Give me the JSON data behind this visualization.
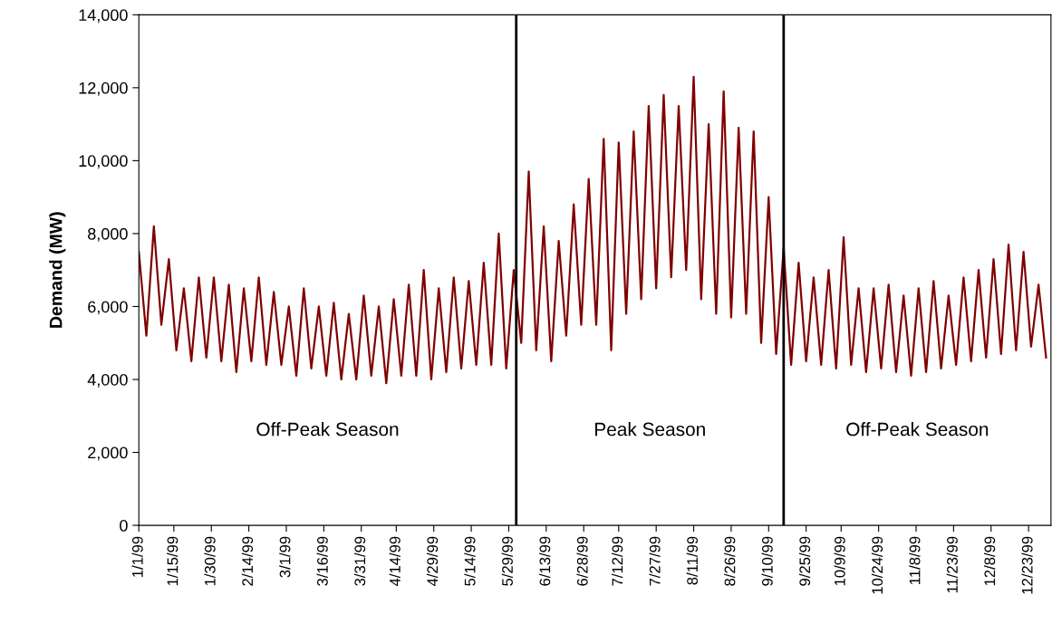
{
  "chart_data": {
    "type": "line",
    "ylabel": "Demand (MW)",
    "x": [
      "1999-01-01",
      "1999-01-04",
      "1999-01-07",
      "1999-01-10",
      "1999-01-13",
      "1999-01-16",
      "1999-01-19",
      "1999-01-22",
      "1999-01-25",
      "1999-01-28",
      "1999-01-31",
      "1999-02-03",
      "1999-02-06",
      "1999-02-09",
      "1999-02-12",
      "1999-02-15",
      "1999-02-18",
      "1999-02-21",
      "1999-02-24",
      "1999-02-27",
      "1999-03-02",
      "1999-03-05",
      "1999-03-08",
      "1999-03-11",
      "1999-03-14",
      "1999-03-17",
      "1999-03-20",
      "1999-03-23",
      "1999-03-26",
      "1999-03-29",
      "1999-04-01",
      "1999-04-04",
      "1999-04-07",
      "1999-04-10",
      "1999-04-13",
      "1999-04-16",
      "1999-04-19",
      "1999-04-22",
      "1999-04-25",
      "1999-04-28",
      "1999-05-01",
      "1999-05-04",
      "1999-05-07",
      "1999-05-10",
      "1999-05-13",
      "1999-05-16",
      "1999-05-19",
      "1999-05-22",
      "1999-05-25",
      "1999-05-28",
      "1999-05-31",
      "1999-06-03",
      "1999-06-06",
      "1999-06-09",
      "1999-06-12",
      "1999-06-15",
      "1999-06-18",
      "1999-06-21",
      "1999-06-24",
      "1999-06-27",
      "1999-06-30",
      "1999-07-03",
      "1999-07-06",
      "1999-07-09",
      "1999-07-12",
      "1999-07-15",
      "1999-07-18",
      "1999-07-21",
      "1999-07-24",
      "1999-07-27",
      "1999-07-30",
      "1999-08-02",
      "1999-08-05",
      "1999-08-08",
      "1999-08-11",
      "1999-08-14",
      "1999-08-17",
      "1999-08-20",
      "1999-08-23",
      "1999-08-26",
      "1999-08-29",
      "1999-09-01",
      "1999-09-04",
      "1999-09-07",
      "1999-09-10",
      "1999-09-13",
      "1999-09-16",
      "1999-09-19",
      "1999-09-22",
      "1999-09-25",
      "1999-09-28",
      "1999-10-01",
      "1999-10-04",
      "1999-10-07",
      "1999-10-10",
      "1999-10-13",
      "1999-10-16",
      "1999-10-19",
      "1999-10-22",
      "1999-10-25",
      "1999-10-28",
      "1999-10-31",
      "1999-11-03",
      "1999-11-06",
      "1999-11-09",
      "1999-11-12",
      "1999-11-15",
      "1999-11-18",
      "1999-11-21",
      "1999-11-24",
      "1999-11-27",
      "1999-11-30",
      "1999-12-03",
      "1999-12-06",
      "1999-12-09",
      "1999-12-12",
      "1999-12-15",
      "1999-12-18",
      "1999-12-21",
      "1999-12-24",
      "1999-12-27",
      "1999-12-30"
    ],
    "series": [
      {
        "color": "#800000",
        "values": [
          7500,
          5200,
          8200,
          5500,
          7300,
          4800,
          6500,
          4500,
          6800,
          4600,
          6800,
          4500,
          6600,
          4200,
          6500,
          4500,
          6800,
          4400,
          6400,
          4400,
          6000,
          4100,
          6500,
          4300,
          6000,
          4100,
          6100,
          4000,
          5800,
          4000,
          6300,
          4100,
          6000,
          3900,
          6200,
          4100,
          6600,
          4100,
          7000,
          4000,
          6500,
          4200,
          6800,
          4300,
          6700,
          4400,
          7200,
          4400,
          8000,
          4300,
          7000,
          5000,
          9700,
          4800,
          8200,
          4500,
          7800,
          5200,
          8800,
          5500,
          9500,
          5500,
          10600,
          4800,
          10500,
          5800,
          10800,
          6200,
          11500,
          6500,
          11800,
          6800,
          11500,
          7000,
          12300,
          6200,
          11000,
          5800,
          11900,
          5700,
          10900,
          5800,
          10800,
          5000,
          9000,
          4700,
          7600,
          4400,
          7200,
          4500,
          6800,
          4400,
          7000,
          4300,
          7900,
          4400,
          6500,
          4200,
          6500,
          4300,
          6600,
          4200,
          6300,
          4100,
          6500,
          4200,
          6700,
          4300,
          6300,
          4400,
          6800,
          4500,
          7000,
          4600,
          7300,
          4700,
          7700,
          4800,
          7500,
          4900,
          6600,
          4600
        ]
      }
    ],
    "xlim": [
      "1999-01-01",
      "1999-12-31T23:00"
    ],
    "xticks": [
      {
        "value": "1999-01-01",
        "label": "1/1/99"
      },
      {
        "value": "1999-01-15",
        "label": "1/15/99"
      },
      {
        "value": "1999-01-30",
        "label": "1/30/99"
      },
      {
        "value": "1999-02-14",
        "label": "2/14/99"
      },
      {
        "value": "1999-03-01",
        "label": "3/1/99"
      },
      {
        "value": "1999-03-16",
        "label": "3/16/99"
      },
      {
        "value": "1999-03-31",
        "label": "3/31/99"
      },
      {
        "value": "1999-04-14",
        "label": "4/14/99"
      },
      {
        "value": "1999-04-29",
        "label": "4/29/99"
      },
      {
        "value": "1999-05-14",
        "label": "5/14/99"
      },
      {
        "value": "1999-05-29",
        "label": "5/29/99"
      },
      {
        "value": "1999-06-13",
        "label": "6/13/99"
      },
      {
        "value": "1999-06-28",
        "label": "6/28/99"
      },
      {
        "value": "1999-07-12",
        "label": "7/12/99"
      },
      {
        "value": "1999-07-27",
        "label": "7/27/99"
      },
      {
        "value": "1999-08-11",
        "label": "8/11/99"
      },
      {
        "value": "1999-08-26",
        "label": "8/26/99"
      },
      {
        "value": "1999-09-10",
        "label": "9/10/99"
      },
      {
        "value": "1999-09-25",
        "label": "9/25/99"
      },
      {
        "value": "1999-10-09",
        "label": "10/9/99"
      },
      {
        "value": "1999-10-24",
        "label": "10/24/99"
      },
      {
        "value": "1999-11-08",
        "label": "11/8/99"
      },
      {
        "value": "1999-11-23",
        "label": "11/23/99"
      },
      {
        "value": "1999-12-08",
        "label": "12/8/99"
      },
      {
        "value": "1999-12-23",
        "label": "12/23/99"
      }
    ],
    "ylim": [
      0,
      14000
    ],
    "yticks": [
      0,
      {
        "value": 2000,
        "label": "2,000"
      },
      {
        "value": 4000,
        "label": "4,000"
      },
      {
        "value": 6000,
        "label": "6,000"
      },
      {
        "value": 8000,
        "label": "8,000"
      },
      {
        "value": 10000,
        "label": "10,000"
      },
      {
        "value": 12000,
        "label": "12,000"
      },
      {
        "value": 14000,
        "label": "14,000"
      }
    ],
    "ref_lines": [
      {
        "axis": "x",
        "value": "1999-06-01",
        "color": "#000000"
      },
      {
        "axis": "x",
        "value": "1999-09-16",
        "color": "#000000"
      }
    ],
    "annotations": [
      "Off-Peak Season",
      "Peak Season",
      "Off-Peak Season"
    ],
    "grid": false,
    "legend": false,
    "marker": "none",
    "line_style": "solid"
  }
}
